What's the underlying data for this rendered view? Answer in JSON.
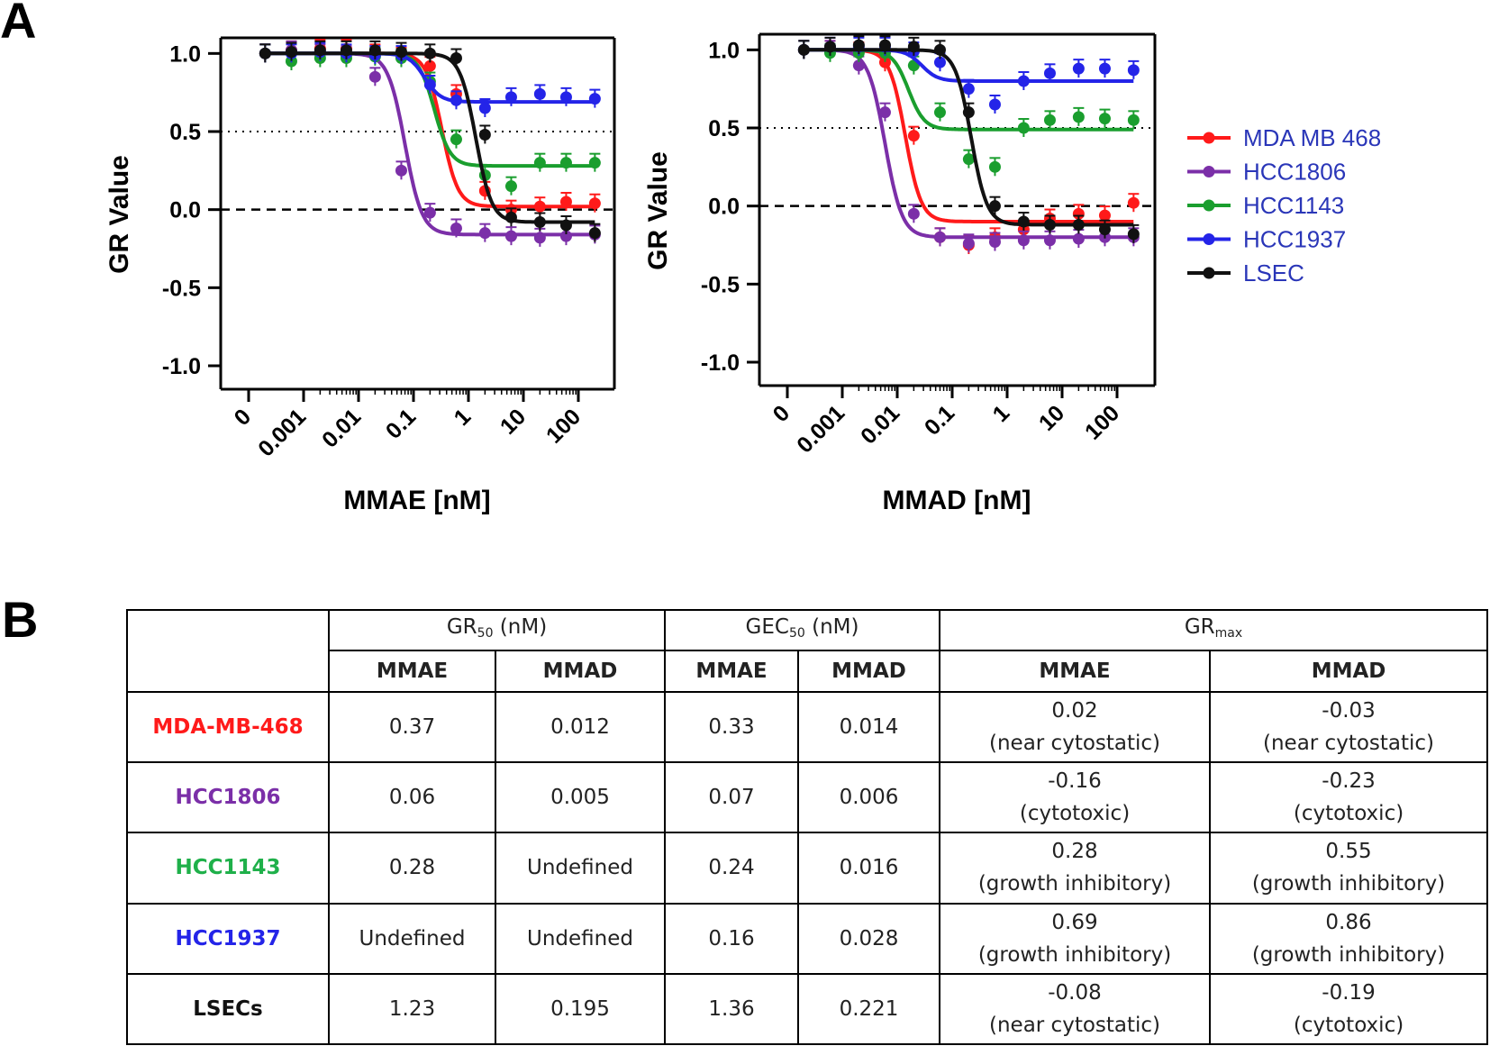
{
  "panel_a_label": "A",
  "panel_b_label": "B",
  "chart_data": [
    {
      "type": "line",
      "title": "",
      "xlabel": "MMAE [nM]",
      "ylabel": "GR Value",
      "xscale": "log",
      "xticks": [
        "0",
        "0.001",
        "0.01",
        "0.1",
        "1",
        "10",
        "100"
      ],
      "yticks": [
        "1.0",
        "0.5",
        "0.0",
        "-0.5",
        "-1.0"
      ],
      "ylim": [
        -1.15,
        1.1
      ],
      "reference_lines": [
        {
          "y": 0.5,
          "style": "dotted"
        },
        {
          "y": 0.0,
          "style": "dashed"
        }
      ],
      "series": [
        {
          "name": "MDA MB 468",
          "color": "#ff1a1a",
          "gr_inf": 0.02,
          "ec50": 0.33,
          "hill": 3.0,
          "x": [
            0.0002,
            0.0006,
            0.002,
            0.006,
            0.02,
            0.06,
            0.2,
            0.6,
            2,
            6,
            20,
            60,
            200
          ],
          "y": [
            1.0,
            1.02,
            1.03,
            1.03,
            1.0,
            0.98,
            0.92,
            0.74,
            0.12,
            0.0,
            0.02,
            0.05,
            0.04
          ]
        },
        {
          "name": "HCC1806",
          "color": "#7b2fa8",
          "gr_inf": -0.16,
          "ec50": 0.07,
          "hill": 2.8,
          "x": [
            0.0002,
            0.0006,
            0.002,
            0.006,
            0.02,
            0.06,
            0.2,
            0.6,
            2,
            6,
            20,
            60,
            200
          ],
          "y": [
            1.0,
            1.02,
            1.0,
            0.99,
            0.85,
            0.25,
            -0.02,
            -0.12,
            -0.15,
            -0.17,
            -0.18,
            -0.17,
            -0.16
          ]
        },
        {
          "name": "HCC1143",
          "color": "#1a9e2e",
          "gr_inf": 0.28,
          "ec50": 0.24,
          "hill": 3.0,
          "x": [
            0.0002,
            0.0006,
            0.002,
            0.006,
            0.02,
            0.06,
            0.2,
            0.6,
            2,
            6,
            20,
            60,
            200
          ],
          "y": [
            1.0,
            0.95,
            0.97,
            0.97,
            0.98,
            0.97,
            0.82,
            0.45,
            0.22,
            0.15,
            0.3,
            0.3,
            0.3
          ]
        },
        {
          "name": "HCC1937",
          "color": "#2424e8",
          "gr_inf": 0.69,
          "ec50": 0.16,
          "hill": 3.0,
          "x": [
            0.0002,
            0.0006,
            0.002,
            0.006,
            0.02,
            0.06,
            0.2,
            0.6,
            2,
            6,
            20,
            60,
            200
          ],
          "y": [
            1.0,
            1.0,
            1.01,
            1.0,
            0.99,
            0.99,
            0.8,
            0.7,
            0.65,
            0.72,
            0.74,
            0.72,
            0.71
          ]
        },
        {
          "name": "LSEC",
          "color": "#111111",
          "gr_inf": -0.08,
          "ec50": 1.36,
          "hill": 3.0,
          "x": [
            0.0002,
            0.0006,
            0.002,
            0.006,
            0.02,
            0.06,
            0.2,
            0.6,
            2,
            6,
            20,
            60,
            200
          ],
          "y": [
            1.0,
            1.01,
            1.02,
            1.02,
            1.02,
            1.01,
            1.0,
            0.97,
            0.48,
            -0.05,
            -0.08,
            -0.1,
            -0.15
          ]
        }
      ]
    },
    {
      "type": "line",
      "title": "",
      "xlabel": "MMAD [nM]",
      "ylabel": "GR Value",
      "xscale": "log",
      "xticks": [
        "0",
        "0.001",
        "0.01",
        "0.1",
        "1",
        "10",
        "100"
      ],
      "yticks": [
        "1.0",
        "0.5",
        "0.0",
        "-0.5",
        "-1.0"
      ],
      "ylim": [
        -1.15,
        1.1
      ],
      "reference_lines": [
        {
          "y": 0.5,
          "style": "dotted"
        },
        {
          "y": 0.0,
          "style": "dashed"
        }
      ],
      "series": [
        {
          "name": "MDA MB 468",
          "color": "#ff1a1a",
          "gr_inf": -0.1,
          "ec50": 0.014,
          "hill": 3.0,
          "x": [
            0.0002,
            0.0006,
            0.002,
            0.006,
            0.02,
            0.06,
            0.2,
            0.6,
            2,
            6,
            20,
            60,
            200
          ],
          "y": [
            1.0,
            1.0,
            0.99,
            0.92,
            0.45,
            -0.2,
            -0.25,
            -0.2,
            -0.15,
            -0.08,
            -0.05,
            -0.06,
            0.02
          ]
        },
        {
          "name": "HCC1806",
          "color": "#7b2fa8",
          "gr_inf": -0.2,
          "ec50": 0.006,
          "hill": 2.8,
          "x": [
            0.0002,
            0.0006,
            0.002,
            0.006,
            0.02,
            0.06,
            0.2,
            0.6,
            2,
            6,
            20,
            60,
            200
          ],
          "y": [
            1.0,
            1.0,
            0.9,
            0.6,
            -0.05,
            -0.2,
            -0.24,
            -0.23,
            -0.22,
            -0.22,
            -0.21,
            -0.2,
            -0.2
          ]
        },
        {
          "name": "HCC1143",
          "color": "#1a9e2e",
          "gr_inf": 0.49,
          "ec50": 0.016,
          "hill": 3.0,
          "x": [
            0.0002,
            0.0006,
            0.002,
            0.006,
            0.02,
            0.06,
            0.2,
            0.6,
            2,
            6,
            20,
            60,
            200
          ],
          "y": [
            1.0,
            0.98,
            0.98,
            0.98,
            0.9,
            0.6,
            0.3,
            0.25,
            0.5,
            0.55,
            0.57,
            0.56,
            0.55
          ]
        },
        {
          "name": "HCC1937",
          "color": "#2424e8",
          "gr_inf": 0.8,
          "ec50": 0.028,
          "hill": 3.0,
          "x": [
            0.0002,
            0.0006,
            0.002,
            0.006,
            0.02,
            0.06,
            0.2,
            0.6,
            2,
            6,
            20,
            60,
            200
          ],
          "y": [
            1.0,
            1.02,
            1.02,
            1.02,
            0.99,
            0.92,
            0.75,
            0.65,
            0.8,
            0.85,
            0.88,
            0.88,
            0.87
          ]
        },
        {
          "name": "LSEC",
          "color": "#111111",
          "gr_inf": -0.12,
          "ec50": 0.221,
          "hill": 3.0,
          "x": [
            0.0002,
            0.0006,
            0.002,
            0.006,
            0.02,
            0.06,
            0.2,
            0.6,
            2,
            6,
            20,
            60,
            200
          ],
          "y": [
            1.0,
            1.02,
            1.03,
            1.03,
            1.02,
            1.0,
            0.6,
            0.0,
            -0.1,
            -0.12,
            -0.12,
            -0.15,
            -0.18
          ]
        }
      ]
    }
  ],
  "legend": [
    {
      "name": "MDA MB 468",
      "color": "#ff1a1a"
    },
    {
      "name": "HCC1806",
      "color": "#7b2fa8"
    },
    {
      "name": "HCC1143",
      "color": "#1a9e2e"
    },
    {
      "name": "HCC1937",
      "color": "#2424e8"
    },
    {
      "name": "LSEC",
      "color": "#111111"
    }
  ],
  "table": {
    "group_headers": {
      "gr50_main": "GR",
      "gr50_sub": "50",
      "gr50_unit": " (nM)",
      "gec50_main": "GEC",
      "gec50_sub": "50",
      "gec50_unit": " (nM)",
      "grmax_main": "GR",
      "grmax_sub": "max"
    },
    "subheaders": [
      "MMAE",
      "MMAD",
      "MMAE",
      "MMAD",
      "MMAE",
      "MMAD"
    ],
    "rows": [
      {
        "name": "MDA-MB-468",
        "color": "#ff1a1a",
        "gr50_mmae": "0.37",
        "gr50_mmad": "0.012",
        "gec50_mmae": "0.33",
        "gec50_mmad": "0.014",
        "grmax_mmae_val": "0.02",
        "grmax_mmae_desc": "(near cytostatic)",
        "grmax_mmad_val": "-0.03",
        "grmax_mmad_desc": "(near cytostatic)"
      },
      {
        "name": "HCC1806",
        "color": "#7b2fa8",
        "gr50_mmae": "0.06",
        "gr50_mmad": "0.005",
        "gec50_mmae": "0.07",
        "gec50_mmad": "0.006",
        "grmax_mmae_val": "-0.16",
        "grmax_mmae_desc": "(cytotoxic)",
        "grmax_mmad_val": "-0.23",
        "grmax_mmad_desc": "(cytotoxic)"
      },
      {
        "name": "HCC1143",
        "color": "#1fb04a",
        "gr50_mmae": "0.28",
        "gr50_mmad": "Undefined",
        "gec50_mmae": "0.24",
        "gec50_mmad": "0.016",
        "grmax_mmae_val": "0.28",
        "grmax_mmae_desc": "(growth inhibitory)",
        "grmax_mmad_val": "0.55",
        "grmax_mmad_desc": "(growth inhibitory)"
      },
      {
        "name": "HCC1937",
        "color": "#2424e8",
        "gr50_mmae": "Undefined",
        "gr50_mmad": "Undefined",
        "gec50_mmae": "0.16",
        "gec50_mmad": "0.028",
        "grmax_mmae_val": "0.69",
        "grmax_mmae_desc": "(growth inhibitory)",
        "grmax_mmad_val": "0.86",
        "grmax_mmad_desc": "(growth inhibitory)"
      },
      {
        "name": "LSECs",
        "color": "#111111",
        "gr50_mmae": "1.23",
        "gr50_mmad": "0.195",
        "gec50_mmae": "1.36",
        "gec50_mmad": "0.221",
        "grmax_mmae_val": "-0.08",
        "grmax_mmae_desc": "(near cytostatic)",
        "grmax_mmad_val": "-0.19",
        "grmax_mmad_desc": "(cytotoxic)"
      }
    ]
  }
}
